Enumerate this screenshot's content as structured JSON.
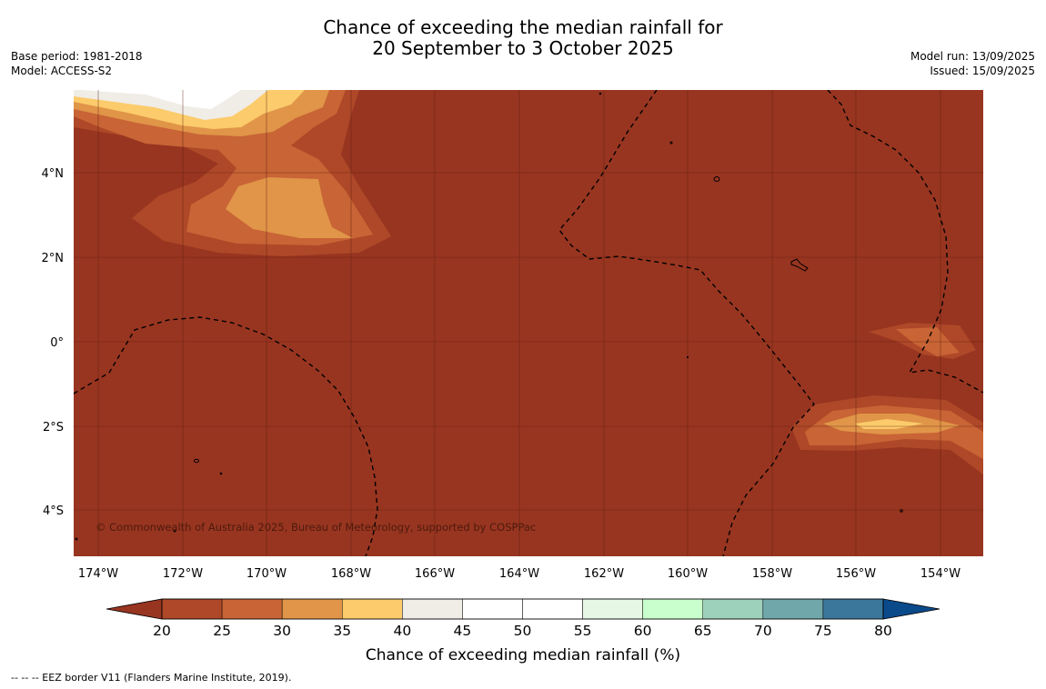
{
  "title": {
    "line1": "Chance of exceeding the median rainfall for",
    "line2": "20 September to 3 October 2025"
  },
  "meta_left": {
    "base_period": "Base period: 1981-2018",
    "model": "Model: ACCESS-S2"
  },
  "meta_right": {
    "model_run": "Model run: 13/09/2025",
    "issued": "Issued: 15/09/2025"
  },
  "map": {
    "lat_labels": [
      "4°N",
      "2°N",
      "0°",
      "2°S",
      "4°S"
    ],
    "lon_labels": [
      "174°W",
      "172°W",
      "170°W",
      "168°W",
      "166°W",
      "164°W",
      "162°W",
      "160°W",
      "158°W",
      "156°W",
      "154°W"
    ],
    "background_color": "#983520",
    "copyright": "© Commonwealth of Australia 2025, Bureau of Meteorology, supported by COSPPac"
  },
  "colorbar": {
    "label": "Chance of exceeding median rainfall (%)",
    "ticks": [
      "20",
      "25",
      "30",
      "35",
      "40",
      "45",
      "50",
      "55",
      "60",
      "65",
      "70",
      "75",
      "80"
    ],
    "under_color": "#983520",
    "over_color": "#0b4a8a",
    "bin_colors": [
      "#ae4828",
      "#c86435",
      "#e09548",
      "#fccb6b",
      "#f0ede7",
      "#ffffff",
      "#ffffff",
      "#e7f7e5",
      "#c9ffcc",
      "#9ed1bc",
      "#70a7aa",
      "#3a779a"
    ]
  },
  "footer": {
    "eez_note": "--  --  -- EEZ border V11 (Flanders Marine Institute, 2019)."
  }
}
